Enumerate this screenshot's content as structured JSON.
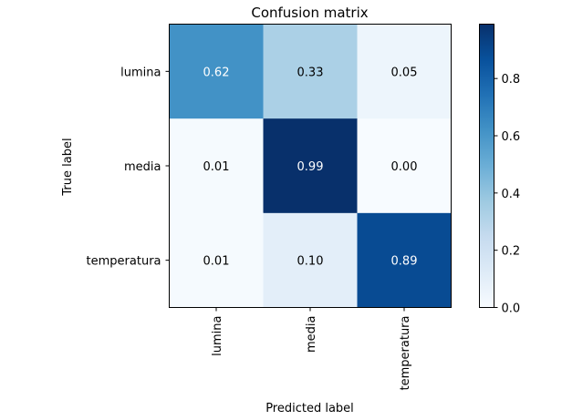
{
  "chart_data": {
    "type": "heatmap",
    "title": "Confusion matrix",
    "xlabel": "Predicted label",
    "ylabel": "True label",
    "x_categories": [
      "lumina",
      "media",
      "temperatura"
    ],
    "y_categories": [
      "lumina",
      "media",
      "temperatura"
    ],
    "values": [
      [
        0.62,
        0.33,
        0.05
      ],
      [
        0.01,
        0.99,
        0.0
      ],
      [
        0.01,
        0.1,
        0.89
      ]
    ],
    "value_labels": [
      [
        "0.62",
        "0.33",
        "0.05"
      ],
      [
        "0.01",
        "0.99",
        "0.00"
      ],
      [
        "0.01",
        "0.10",
        "0.89"
      ]
    ],
    "colormap": "Blues",
    "colorbar": {
      "range": [
        0.0,
        0.99
      ],
      "ticks": [
        0.0,
        0.2,
        0.4,
        0.6,
        0.8
      ],
      "tick_labels": [
        "0.0",
        "0.2",
        "0.4",
        "0.6",
        "0.8"
      ]
    },
    "colors": {
      "low": "#f7fbff",
      "high": "#08306b",
      "text_dark": "#000000",
      "text_light": "#ffffff"
    }
  }
}
